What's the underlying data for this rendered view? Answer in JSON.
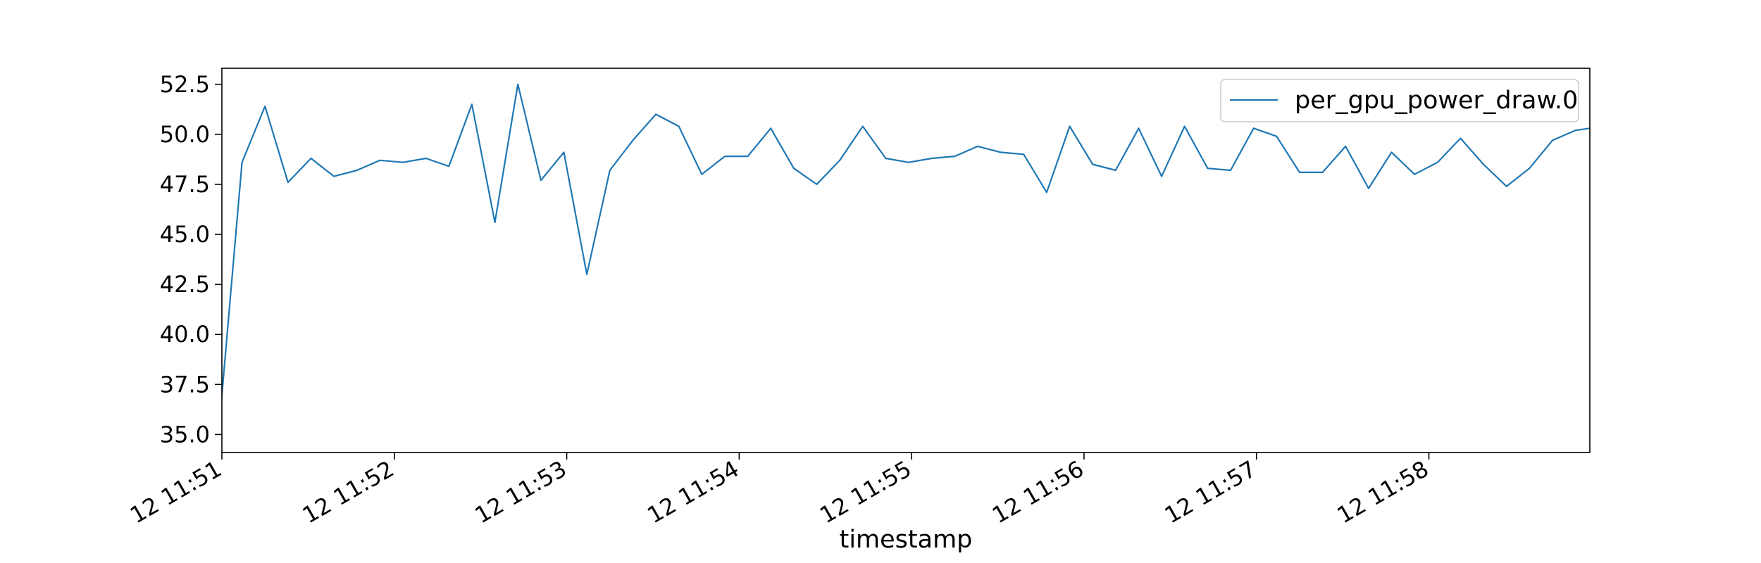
{
  "chart_data": {
    "type": "line",
    "xlabel": "timestamp",
    "ylabel": "",
    "ylim": [
      34.1,
      53.3
    ],
    "y_ticks": [
      35.0,
      37.5,
      40.0,
      42.5,
      45.0,
      47.5,
      50.0,
      52.5
    ],
    "y_tick_labels": [
      "35.0",
      "37.5",
      "40.0",
      "42.5",
      "45.0",
      "47.5",
      "50.0",
      "52.5"
    ],
    "x_range": [
      "12 11:51:00",
      "12 11:58:56"
    ],
    "x_ticks": [
      "12 11:51:00",
      "12 11:52:00",
      "12 11:53:00",
      "12 11:54:00",
      "12 11:55:00",
      "12 11:56:00",
      "12 11:57:00",
      "12 11:58:00"
    ],
    "x_tick_labels": [
      "12 11:51",
      "12 11:52",
      "12 11:53",
      "12 11:54",
      "12 11:55",
      "12 11:56",
      "12 11:57",
      "12 11:58"
    ],
    "legend_position": "upper right",
    "grid": false,
    "series": [
      {
        "name": "per_gpu_power_draw.0",
        "color": "#1f77b4",
        "x": [
          "12 11:50:59",
          "12 11:51:07",
          "12 11:51:15",
          "12 11:51:23",
          "12 11:51:31",
          "12 11:51:39",
          "12 11:51:47",
          "12 11:51:55",
          "12 11:52:03",
          "12 11:52:11",
          "12 11:52:19",
          "12 11:52:27",
          "12 11:52:35",
          "12 11:52:43",
          "12 11:52:51",
          "12 11:52:59",
          "12 11:53:07",
          "12 11:53:15",
          "12 11:53:23",
          "12 11:53:31",
          "12 11:53:39",
          "12 11:53:47",
          "12 11:53:55",
          "12 11:54:03",
          "12 11:54:11",
          "12 11:54:19",
          "12 11:54:27",
          "12 11:54:35",
          "12 11:54:43",
          "12 11:54:51",
          "12 11:54:59",
          "12 11:55:07",
          "12 11:55:15",
          "12 11:55:23",
          "12 11:55:31",
          "12 11:55:39",
          "12 11:55:47",
          "12 11:55:55",
          "12 11:56:03",
          "12 11:56:11",
          "12 11:56:19",
          "12 11:56:27",
          "12 11:56:35",
          "12 11:56:43",
          "12 11:56:51",
          "12 11:56:59",
          "12 11:57:07",
          "12 11:57:15",
          "12 11:57:23",
          "12 11:57:31",
          "12 11:57:39",
          "12 11:57:47",
          "12 11:57:55",
          "12 11:58:03",
          "12 11:58:11",
          "12 11:58:19",
          "12 11:58:27",
          "12 11:58:35",
          "12 11:58:43",
          "12 11:58:51",
          "12 11:58:56"
        ],
        "values": [
          35.3,
          48.6,
          51.4,
          47.6,
          48.8,
          47.9,
          48.2,
          48.7,
          48.6,
          48.8,
          48.4,
          51.5,
          45.6,
          52.5,
          47.7,
          49.1,
          43.0,
          48.2,
          49.7,
          51.0,
          50.4,
          48.0,
          48.9,
          48.9,
          50.3,
          48.3,
          47.5,
          48.7,
          50.4,
          48.8,
          48.6,
          48.8,
          48.9,
          49.4,
          49.1,
          49.0,
          47.1,
          50.4,
          48.5,
          48.2,
          50.3,
          47.9,
          50.4,
          48.3,
          48.2,
          50.3,
          49.9,
          48.1,
          48.1,
          49.4,
          47.3,
          49.1,
          48.0,
          48.6,
          49.8,
          48.5,
          47.4,
          48.3,
          49.7,
          50.2,
          50.3
        ]
      }
    ]
  }
}
